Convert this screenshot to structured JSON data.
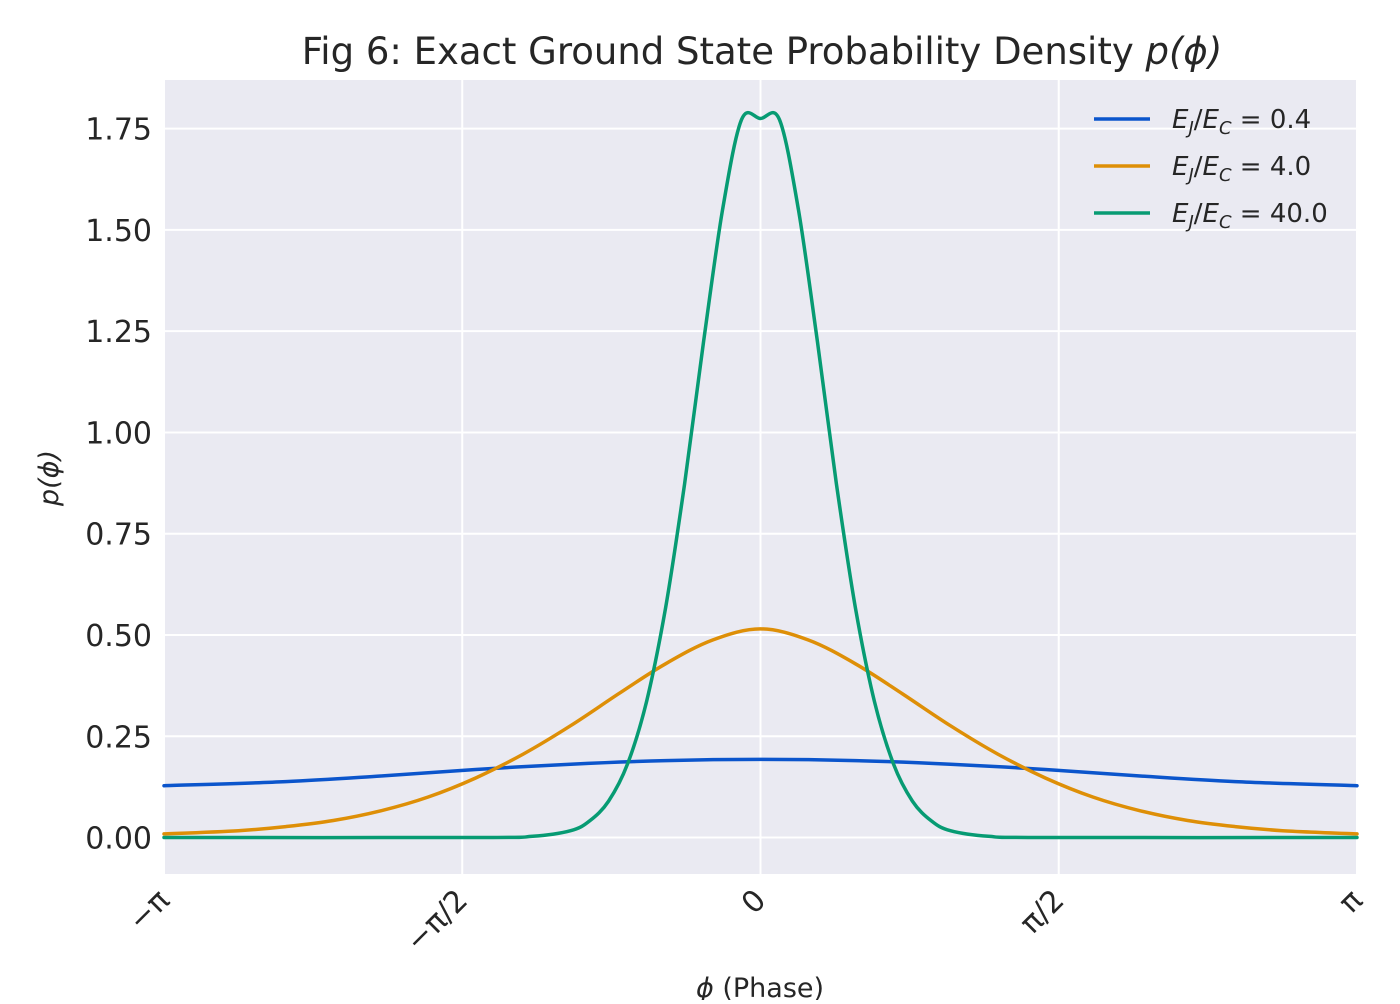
{
  "chart_data": {
    "type": "line",
    "title_main": "Fig 6: Exact Ground State Probability Density ",
    "title_math": "p(ϕ)",
    "xlabel_math": "ϕ",
    "xlabel_text": " (Phase)",
    "ylabel": "p(ϕ)",
    "xlim": [
      -3.14159,
      3.14159
    ],
    "ylim": [
      -0.09,
      1.87
    ],
    "grid": true,
    "legend_position": "top-right",
    "background_color": "#EAEAF2",
    "x_ticks": [
      {
        "value": -3.14159,
        "label": "−π"
      },
      {
        "value": -1.5708,
        "label": "−π/2"
      },
      {
        "value": 0,
        "label": "0"
      },
      {
        "value": 1.5708,
        "label": "π/2"
      },
      {
        "value": 3.14159,
        "label": "π"
      }
    ],
    "y_ticks": [
      {
        "value": 0.0,
        "label": "0.00"
      },
      {
        "value": 0.25,
        "label": "0.25"
      },
      {
        "value": 0.5,
        "label": "0.50"
      },
      {
        "value": 0.75,
        "label": "0.75"
      },
      {
        "value": 1.0,
        "label": "1.00"
      },
      {
        "value": 1.25,
        "label": "1.25"
      },
      {
        "value": 1.5,
        "label": "1.50"
      },
      {
        "value": 1.75,
        "label": "1.75"
      }
    ],
    "series": [
      {
        "name": "E_J/E_C = 0.4",
        "legend_ratio": "0.4",
        "color": "#0B55CC",
        "x": [
          -3.14159,
          -2.5,
          -2.0,
          -1.5,
          -1.0,
          -0.5,
          0.0,
          0.5,
          1.0,
          1.5,
          2.0,
          2.5,
          3.14159
        ],
        "y": [
          0.128,
          0.138,
          0.152,
          0.168,
          0.181,
          0.19,
          0.193,
          0.19,
          0.181,
          0.168,
          0.152,
          0.138,
          0.128
        ]
      },
      {
        "name": "E_J/E_C = 4.0",
        "legend_ratio": "4.0",
        "color": "#DE8F07",
        "x": [
          -3.14159,
          -2.75,
          -2.5,
          -2.25,
          -2.0,
          -1.75,
          -1.5,
          -1.25,
          -1.0,
          -0.75,
          -0.5,
          -0.25,
          0.0,
          0.25,
          0.5,
          0.75,
          1.0,
          1.25,
          1.5,
          1.75,
          2.0,
          2.25,
          2.5,
          2.75,
          3.14159
        ],
        "y": [
          0.009,
          0.017,
          0.027,
          0.042,
          0.066,
          0.1,
          0.147,
          0.206,
          0.276,
          0.354,
          0.429,
          0.488,
          0.515,
          0.488,
          0.429,
          0.354,
          0.276,
          0.206,
          0.147,
          0.1,
          0.066,
          0.042,
          0.027,
          0.017,
          0.009
        ]
      },
      {
        "name": "E_J/E_C = 40.0",
        "legend_ratio": "40.0",
        "color": "#079B73",
        "x": [
          -3.14159,
          -1.5,
          -1.2,
          -1.0,
          -0.9,
          -0.8,
          -0.7,
          -0.6,
          -0.5,
          -0.4,
          -0.3,
          -0.2,
          -0.1,
          0.0,
          0.1,
          0.2,
          0.3,
          0.4,
          0.5,
          0.6,
          0.7,
          0.8,
          0.9,
          1.0,
          1.2,
          1.5,
          3.14159
        ],
        "y": [
          0.0,
          0.0,
          0.003,
          0.017,
          0.041,
          0.09,
          0.182,
          0.336,
          0.567,
          0.873,
          1.223,
          1.549,
          1.772,
          1.775,
          1.772,
          1.549,
          1.223,
          0.873,
          0.567,
          0.336,
          0.182,
          0.09,
          0.041,
          0.017,
          0.003,
          0.0,
          0.0
        ]
      }
    ]
  }
}
